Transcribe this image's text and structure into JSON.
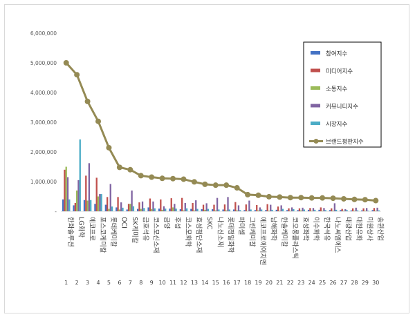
{
  "chart_data": {
    "type": "bar",
    "title": "",
    "xlabel": "",
    "ylabel": "",
    "ylim": [
      0,
      6000000
    ],
    "yticks": [
      0,
      1000000,
      2000000,
      3000000,
      4000000,
      5000000,
      6000000
    ],
    "ytick_labels": [
      "-",
      "1,000,000",
      "2,000,000",
      "3,000,000",
      "4,000,000",
      "5,000,000",
      "6,000,000"
    ],
    "grid": false,
    "legend_position": "right",
    "categories": [
      "한화솔루션",
      "LG화학",
      "에코프로",
      "포스코케미칼",
      "롯데케미칼",
      "OCI",
      "SK케미칼",
      "금호석유",
      "코스모신소재",
      "금양",
      "후성",
      "코스모화학",
      "효성첨단소재",
      "SKC",
      "나노신소재",
      "롯데정밀화학",
      "파미셀",
      "그린케미칼",
      "에코프로에이치엔",
      "남해화학",
      "한솔케미칼",
      "코오롱플라스틱",
      "효성화학",
      "이수화학",
      "한국석유",
      "나노씨엠에스",
      "태광산업",
      "대한유화",
      "미원상사",
      "송원산업"
    ],
    "ranks": [
      "1",
      "2",
      "3",
      "4",
      "5",
      "6",
      "7",
      "8",
      "9",
      "10",
      "11",
      "12",
      "13",
      "14",
      "15",
      "16",
      "17",
      "18",
      "19",
      "20",
      "21",
      "22",
      "23",
      "24",
      "25",
      "26",
      "27",
      "28",
      "29",
      "30"
    ],
    "series": [
      {
        "name": "참여지수",
        "type": "bar",
        "color": "#4472c4",
        "values": [
          400000,
          200000,
          380000,
          250000,
          220000,
          130000,
          60000,
          80000,
          130000,
          90000,
          90000,
          70000,
          80000,
          70000,
          70000,
          60000,
          60000,
          40000,
          40000,
          40000,
          50000,
          40000,
          40000,
          50000,
          50000,
          40000,
          40000,
          30000,
          30000,
          40000
        ]
      },
      {
        "name": "미디어지수",
        "type": "bar",
        "color": "#c0504d",
        "values": [
          1400000,
          280000,
          1200000,
          1130000,
          480000,
          480000,
          250000,
          300000,
          430000,
          400000,
          440000,
          450000,
          280000,
          220000,
          220000,
          230000,
          310000,
          230000,
          210000,
          240000,
          160000,
          100000,
          100000,
          110000,
          130000,
          100000,
          80000,
          100000,
          100000,
          110000
        ]
      },
      {
        "name": "소통지수",
        "type": "bar",
        "color": "#9bbb59",
        "values": [
          1500000,
          700000,
          360000,
          500000,
          80000,
          60000,
          250000,
          80000,
          80000,
          50000,
          130000,
          30000,
          30000,
          50000,
          30000,
          30000,
          30000,
          20000,
          30000,
          20000,
          20000,
          20000,
          30000,
          20000,
          20000,
          20000,
          20000,
          20000,
          20000,
          20000
        ]
      },
      {
        "name": "커뮤니티지수",
        "type": "bar",
        "color": "#8064a2",
        "values": [
          1150000,
          1050000,
          1620000,
          580000,
          920000,
          300000,
          700000,
          330000,
          330000,
          170000,
          250000,
          280000,
          370000,
          270000,
          450000,
          480000,
          200000,
          360000,
          130000,
          220000,
          200000,
          130000,
          120000,
          110000,
          110000,
          270000,
          70000,
          120000,
          110000,
          120000
        ]
      },
      {
        "name": "시장지수",
        "type": "bar",
        "color": "#4bacc6",
        "values": [
          400000,
          2420000,
          380000,
          580000,
          160000,
          120000,
          170000,
          110000,
          100000,
          90000,
          90000,
          100000,
          80000,
          80000,
          60000,
          60000,
          40000,
          60000,
          60000,
          50000,
          80000,
          70000,
          60000,
          50000,
          40000,
          50000,
          40000,
          30000,
          20000,
          30000
        ]
      },
      {
        "name": "브랜드평판지수",
        "type": "line",
        "color": "#948a54",
        "values": [
          5000000,
          4600000,
          3700000,
          3030000,
          2140000,
          1480000,
          1400000,
          1200000,
          1150000,
          1110000,
          1100000,
          1080000,
          990000,
          910000,
          880000,
          880000,
          790000,
          560000,
          540000,
          490000,
          480000,
          460000,
          460000,
          450000,
          450000,
          440000,
          420000,
          400000,
          390000,
          360000
        ]
      }
    ]
  }
}
